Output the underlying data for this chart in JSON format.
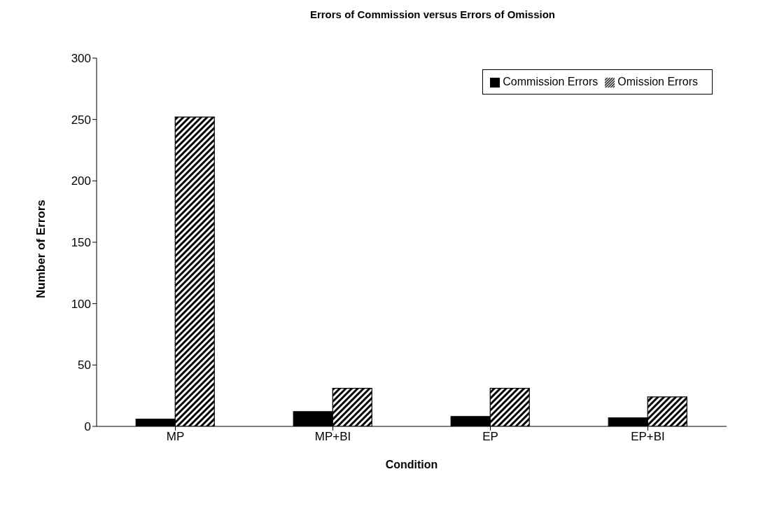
{
  "chart_data": {
    "type": "bar",
    "title": "Errors of Commission versus Errors of Omission",
    "xlabel": "Condition",
    "ylabel": "Number of Errors",
    "categories": [
      "MP",
      "MP+BI",
      "EP",
      "EP+BI"
    ],
    "series": [
      {
        "name": "Commission Errors",
        "color": "#000000",
        "values": [
          6,
          12,
          8,
          7
        ]
      },
      {
        "name": "Omission Errors",
        "color": "#000000",
        "values": [
          252,
          31,
          31,
          24
        ]
      }
    ],
    "ylim": [
      0,
      300
    ],
    "yticks": [
      0,
      50,
      100,
      150,
      200,
      250,
      300
    ],
    "legend": "top right"
  }
}
